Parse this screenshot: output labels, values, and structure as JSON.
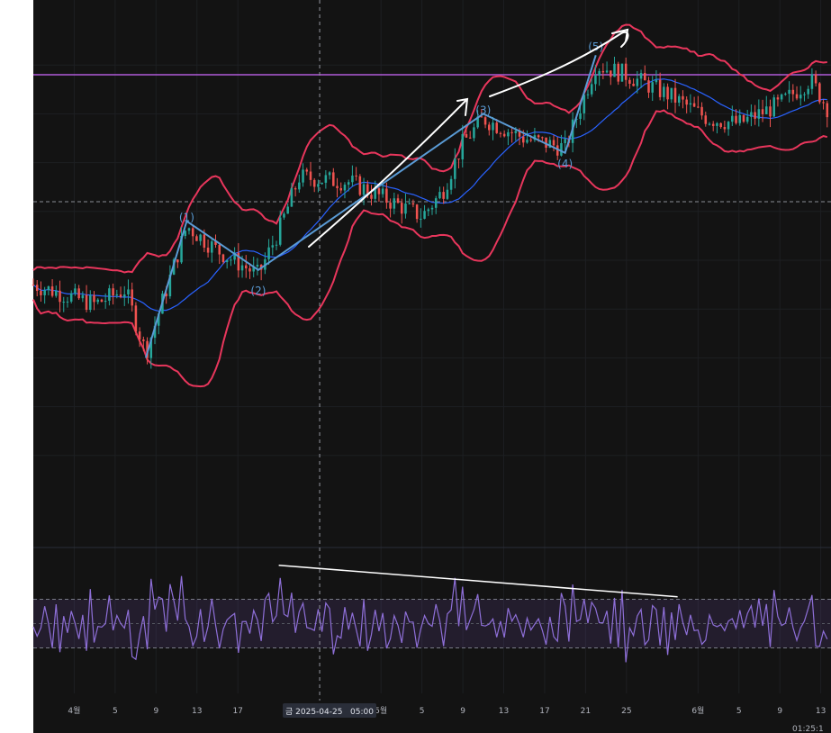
{
  "chart_data": [
    {
      "type": "candlestick",
      "x_type": "date",
      "x_start": "2025-03-28",
      "x_end": "2025-06-14",
      "y_lim": [
        0,
        100
      ],
      "overlay": "bollinger-bands",
      "horizontal_line": {
        "y": 88,
        "color": "#b05ad8",
        "style": "solid"
      },
      "dashed_price_line": {
        "y": 62
      },
      "wave_labels": [
        {
          "label": "(1)",
          "x": "2025-04-12",
          "y": 58
        },
        {
          "label": "(2)",
          "x": "2025-04-19",
          "y": 43
        },
        {
          "label": "(3)",
          "x": "2025-05-11",
          "y": 80
        },
        {
          "label": "(4)",
          "x": "2025-05-19",
          "y": 69
        },
        {
          "label": "(5)",
          "x": "2025-05-22",
          "y": 93
        }
      ],
      "wave_path": [
        {
          "x": "2025-04-08",
          "y": 30
        },
        {
          "x": "2025-04-12",
          "y": 58
        },
        {
          "x": "2025-04-19",
          "y": 48
        },
        {
          "x": "2025-05-11",
          "y": 80
        },
        {
          "x": "2025-05-19",
          "y": 72
        },
        {
          "x": "2025-05-22",
          "y": 92
        }
      ]
    },
    {
      "type": "line",
      "series": [
        {
          "color": "#8e6fd8"
        }
      ],
      "reference_lines": [
        70,
        50,
        30
      ],
      "divergence_line": [
        {
          "x": "2025-04-21",
          "y": 98
        },
        {
          "x": "2025-05-30",
          "y": 72
        }
      ]
    }
  ],
  "x_axis": {
    "ticks": [
      {
        "date": "2025-04-01",
        "label": "4월"
      },
      {
        "date": "2025-04-05",
        "label": "5"
      },
      {
        "date": "2025-04-09",
        "label": "9"
      },
      {
        "date": "2025-04-13",
        "label": "13"
      },
      {
        "date": "2025-04-17",
        "label": "17"
      },
      {
        "date": "2025-05-01",
        "label": "5월"
      },
      {
        "date": "2025-05-05",
        "label": "5"
      },
      {
        "date": "2025-05-09",
        "label": "9"
      },
      {
        "date": "2025-05-13",
        "label": "13"
      },
      {
        "date": "2025-05-17",
        "label": "17"
      },
      {
        "date": "2025-05-21",
        "label": "21"
      },
      {
        "date": "2025-05-25",
        "label": "25"
      },
      {
        "date": "2025-06-01",
        "label": "6월"
      },
      {
        "date": "2025-06-05",
        "label": "5"
      },
      {
        "date": "2025-06-09",
        "label": "9"
      },
      {
        "date": "2025-06-13",
        "label": "13"
      }
    ],
    "crosshair_label": "금 2025-04-25   05:00",
    "corner_time": "01:25:1"
  },
  "colors": {
    "background": "#131313",
    "grid": "#1d1f22",
    "up": "#26a69a",
    "down": "#ef5350",
    "bands": "#e8365c",
    "basis": "#2962ff",
    "wave": "#5a9bd5",
    "annotation": "#ffffff",
    "osc_band": "#7e57c2"
  }
}
